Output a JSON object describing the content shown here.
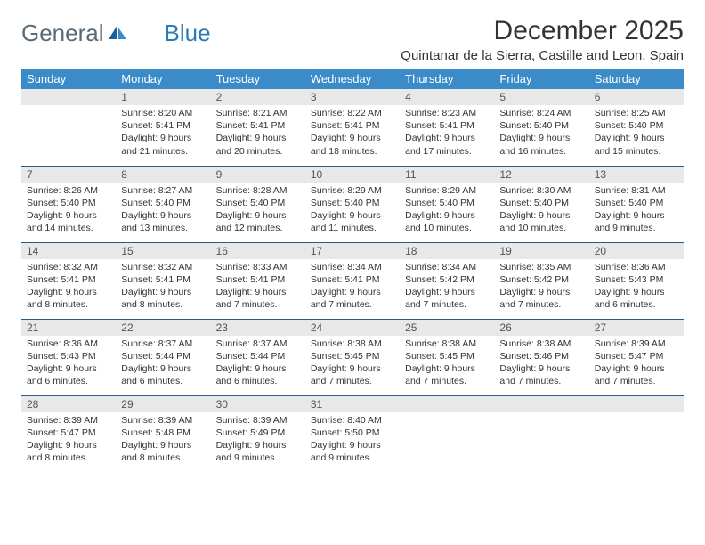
{
  "logo": {
    "text1": "General",
    "text2": "Blue"
  },
  "title": "December 2025",
  "location": "Quintanar de la Sierra, Castille and Leon, Spain",
  "day_header_bg": "#3b8bc8",
  "day_header_color": "#ffffff",
  "daynum_bg": "#e8e8e8",
  "row_border": "#2a5a8a",
  "days_of_week": [
    "Sunday",
    "Monday",
    "Tuesday",
    "Wednesday",
    "Thursday",
    "Friday",
    "Saturday"
  ],
  "weeks": [
    [
      {
        "n": "",
        "sunrise": "",
        "sunset": "",
        "daylight": ""
      },
      {
        "n": "1",
        "sunrise": "Sunrise: 8:20 AM",
        "sunset": "Sunset: 5:41 PM",
        "daylight": "Daylight: 9 hours and 21 minutes."
      },
      {
        "n": "2",
        "sunrise": "Sunrise: 8:21 AM",
        "sunset": "Sunset: 5:41 PM",
        "daylight": "Daylight: 9 hours and 20 minutes."
      },
      {
        "n": "3",
        "sunrise": "Sunrise: 8:22 AM",
        "sunset": "Sunset: 5:41 PM",
        "daylight": "Daylight: 9 hours and 18 minutes."
      },
      {
        "n": "4",
        "sunrise": "Sunrise: 8:23 AM",
        "sunset": "Sunset: 5:41 PM",
        "daylight": "Daylight: 9 hours and 17 minutes."
      },
      {
        "n": "5",
        "sunrise": "Sunrise: 8:24 AM",
        "sunset": "Sunset: 5:40 PM",
        "daylight": "Daylight: 9 hours and 16 minutes."
      },
      {
        "n": "6",
        "sunrise": "Sunrise: 8:25 AM",
        "sunset": "Sunset: 5:40 PM",
        "daylight": "Daylight: 9 hours and 15 minutes."
      }
    ],
    [
      {
        "n": "7",
        "sunrise": "Sunrise: 8:26 AM",
        "sunset": "Sunset: 5:40 PM",
        "daylight": "Daylight: 9 hours and 14 minutes."
      },
      {
        "n": "8",
        "sunrise": "Sunrise: 8:27 AM",
        "sunset": "Sunset: 5:40 PM",
        "daylight": "Daylight: 9 hours and 13 minutes."
      },
      {
        "n": "9",
        "sunrise": "Sunrise: 8:28 AM",
        "sunset": "Sunset: 5:40 PM",
        "daylight": "Daylight: 9 hours and 12 minutes."
      },
      {
        "n": "10",
        "sunrise": "Sunrise: 8:29 AM",
        "sunset": "Sunset: 5:40 PM",
        "daylight": "Daylight: 9 hours and 11 minutes."
      },
      {
        "n": "11",
        "sunrise": "Sunrise: 8:29 AM",
        "sunset": "Sunset: 5:40 PM",
        "daylight": "Daylight: 9 hours and 10 minutes."
      },
      {
        "n": "12",
        "sunrise": "Sunrise: 8:30 AM",
        "sunset": "Sunset: 5:40 PM",
        "daylight": "Daylight: 9 hours and 10 minutes."
      },
      {
        "n": "13",
        "sunrise": "Sunrise: 8:31 AM",
        "sunset": "Sunset: 5:40 PM",
        "daylight": "Daylight: 9 hours and 9 minutes."
      }
    ],
    [
      {
        "n": "14",
        "sunrise": "Sunrise: 8:32 AM",
        "sunset": "Sunset: 5:41 PM",
        "daylight": "Daylight: 9 hours and 8 minutes."
      },
      {
        "n": "15",
        "sunrise": "Sunrise: 8:32 AM",
        "sunset": "Sunset: 5:41 PM",
        "daylight": "Daylight: 9 hours and 8 minutes."
      },
      {
        "n": "16",
        "sunrise": "Sunrise: 8:33 AM",
        "sunset": "Sunset: 5:41 PM",
        "daylight": "Daylight: 9 hours and 7 minutes."
      },
      {
        "n": "17",
        "sunrise": "Sunrise: 8:34 AM",
        "sunset": "Sunset: 5:41 PM",
        "daylight": "Daylight: 9 hours and 7 minutes."
      },
      {
        "n": "18",
        "sunrise": "Sunrise: 8:34 AM",
        "sunset": "Sunset: 5:42 PM",
        "daylight": "Daylight: 9 hours and 7 minutes."
      },
      {
        "n": "19",
        "sunrise": "Sunrise: 8:35 AM",
        "sunset": "Sunset: 5:42 PM",
        "daylight": "Daylight: 9 hours and 7 minutes."
      },
      {
        "n": "20",
        "sunrise": "Sunrise: 8:36 AM",
        "sunset": "Sunset: 5:43 PM",
        "daylight": "Daylight: 9 hours and 6 minutes."
      }
    ],
    [
      {
        "n": "21",
        "sunrise": "Sunrise: 8:36 AM",
        "sunset": "Sunset: 5:43 PM",
        "daylight": "Daylight: 9 hours and 6 minutes."
      },
      {
        "n": "22",
        "sunrise": "Sunrise: 8:37 AM",
        "sunset": "Sunset: 5:44 PM",
        "daylight": "Daylight: 9 hours and 6 minutes."
      },
      {
        "n": "23",
        "sunrise": "Sunrise: 8:37 AM",
        "sunset": "Sunset: 5:44 PM",
        "daylight": "Daylight: 9 hours and 6 minutes."
      },
      {
        "n": "24",
        "sunrise": "Sunrise: 8:38 AM",
        "sunset": "Sunset: 5:45 PM",
        "daylight": "Daylight: 9 hours and 7 minutes."
      },
      {
        "n": "25",
        "sunrise": "Sunrise: 8:38 AM",
        "sunset": "Sunset: 5:45 PM",
        "daylight": "Daylight: 9 hours and 7 minutes."
      },
      {
        "n": "26",
        "sunrise": "Sunrise: 8:38 AM",
        "sunset": "Sunset: 5:46 PM",
        "daylight": "Daylight: 9 hours and 7 minutes."
      },
      {
        "n": "27",
        "sunrise": "Sunrise: 8:39 AM",
        "sunset": "Sunset: 5:47 PM",
        "daylight": "Daylight: 9 hours and 7 minutes."
      }
    ],
    [
      {
        "n": "28",
        "sunrise": "Sunrise: 8:39 AM",
        "sunset": "Sunset: 5:47 PM",
        "daylight": "Daylight: 9 hours and 8 minutes."
      },
      {
        "n": "29",
        "sunrise": "Sunrise: 8:39 AM",
        "sunset": "Sunset: 5:48 PM",
        "daylight": "Daylight: 9 hours and 8 minutes."
      },
      {
        "n": "30",
        "sunrise": "Sunrise: 8:39 AM",
        "sunset": "Sunset: 5:49 PM",
        "daylight": "Daylight: 9 hours and 9 minutes."
      },
      {
        "n": "31",
        "sunrise": "Sunrise: 8:40 AM",
        "sunset": "Sunset: 5:50 PM",
        "daylight": "Daylight: 9 hours and 9 minutes."
      },
      {
        "n": "",
        "sunrise": "",
        "sunset": "",
        "daylight": ""
      },
      {
        "n": "",
        "sunrise": "",
        "sunset": "",
        "daylight": ""
      },
      {
        "n": "",
        "sunrise": "",
        "sunset": "",
        "daylight": ""
      }
    ]
  ]
}
